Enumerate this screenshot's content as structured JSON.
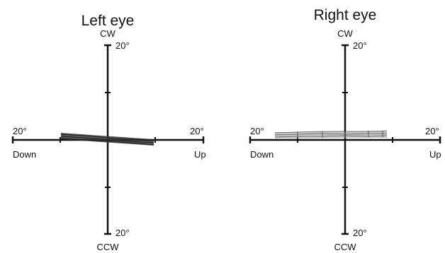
{
  "panels": [
    {
      "title": "Left eye",
      "top_label": "CW",
      "top_value": "20°",
      "bottom_label": "CCW",
      "bottom_value": "20°",
      "left_value": "20°",
      "left_label": "Down",
      "right_value": "20°",
      "right_label": "Up",
      "trace": {
        "shade": "#3a3a3a",
        "shape": "tapered-band"
      }
    },
    {
      "title": "Right eye",
      "top_label": "CW",
      "top_value": "20°",
      "bottom_label": "CCW",
      "bottom_value": "20°",
      "left_value": "20°",
      "left_label": "Down",
      "right_value": "20°",
      "right_label": "Up",
      "trace": {
        "shade": "#9a9a9a",
        "shape": "flat-band"
      }
    }
  ]
}
